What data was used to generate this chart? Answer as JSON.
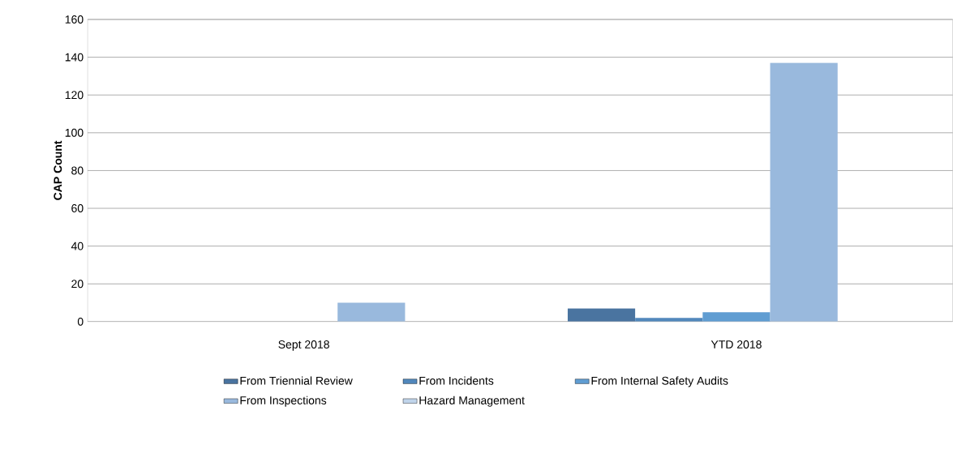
{
  "chart_data": {
    "type": "bar",
    "ylabel": "CAP Count",
    "categories": [
      "Sept 2018",
      "YTD 2018"
    ],
    "series": [
      {
        "name": "From Triennial Review",
        "color": "#4a74a0",
        "values": [
          0,
          7
        ]
      },
      {
        "name": "From Incidents",
        "color": "#5288bc",
        "values": [
          0,
          2
        ]
      },
      {
        "name": "From Internal Safety Audits",
        "color": "#609dd2",
        "values": [
          0,
          5
        ]
      },
      {
        "name": "From Inspections",
        "color": "#99b9dd",
        "values": [
          10,
          137
        ]
      },
      {
        "name": "Hazard Management",
        "color": "#c0d4ea",
        "values": [
          0,
          0
        ]
      }
    ],
    "ylim": [
      0,
      160
    ],
    "yticks": [
      0,
      20,
      40,
      60,
      80,
      100,
      120,
      140,
      160
    ],
    "grid": "y",
    "legend": "bottom"
  }
}
